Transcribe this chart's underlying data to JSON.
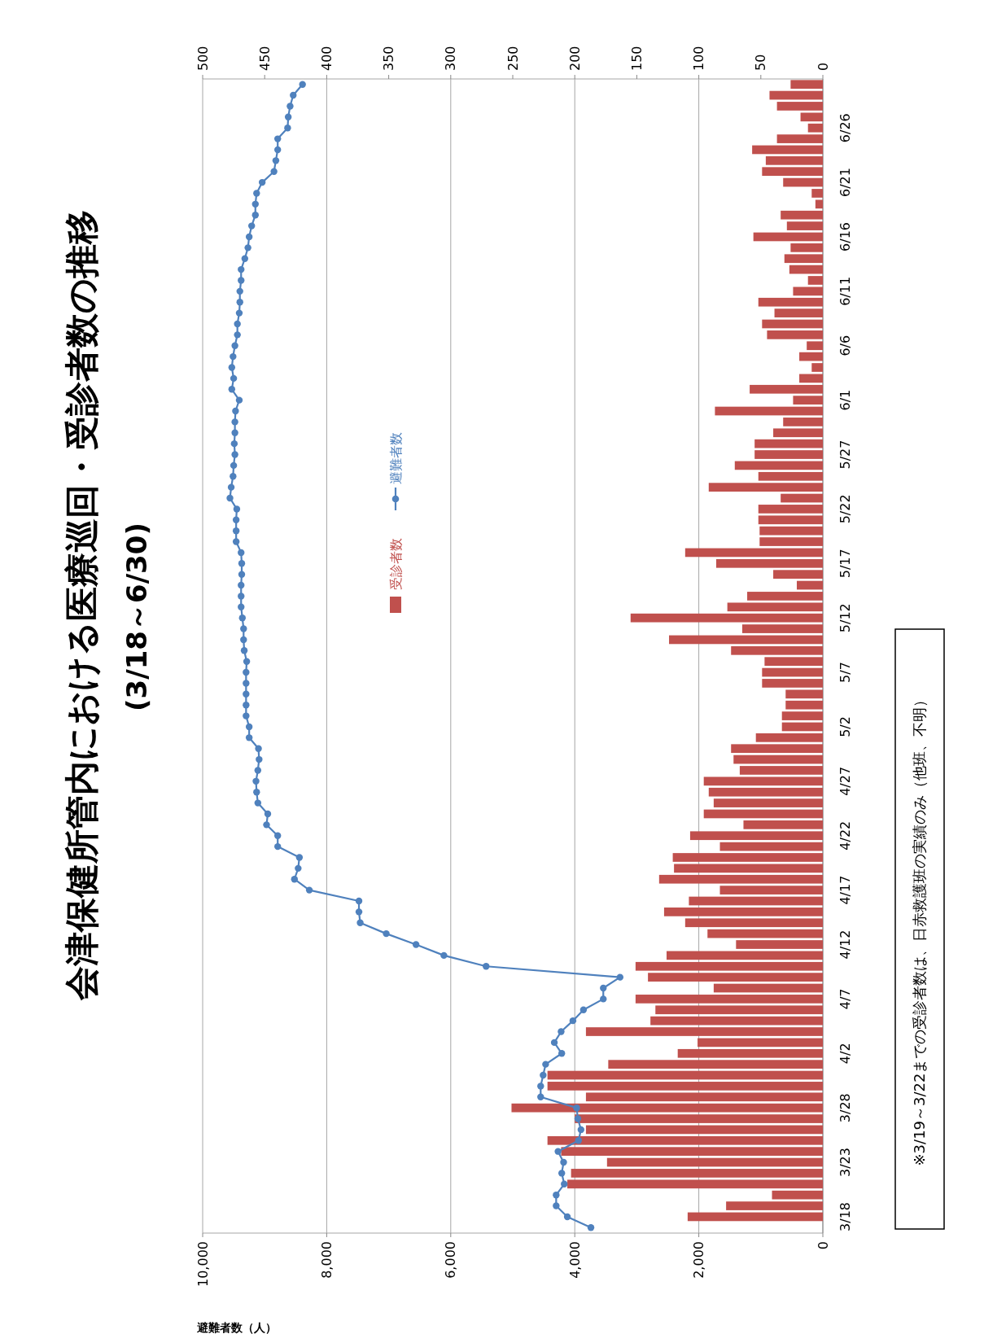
{
  "chart_data": {
    "type": "bar",
    "orientation": "horizontal",
    "title": "会津保健所管内における医療巡回・受診者数の推移",
    "subtitle": "(3/18～6/30)",
    "xlabel": "避難者数（人）",
    "categories": [
      null,
      null,
      null,
      null,
      "6/26",
      null,
      null,
      null,
      null,
      "6/21",
      null,
      null,
      null,
      null,
      "6/16",
      null,
      null,
      null,
      null,
      "6/11",
      null,
      null,
      null,
      null,
      "6/6",
      null,
      null,
      null,
      null,
      "6/1",
      null,
      null,
      null,
      null,
      "5/27",
      null,
      null,
      null,
      null,
      "5/22",
      null,
      null,
      null,
      null,
      "5/17",
      null,
      null,
      null,
      null,
      "5/12",
      null,
      null,
      null,
      null,
      "5/7",
      null,
      null,
      null,
      null,
      "5/2",
      null,
      null,
      null,
      null,
      "4/27",
      null,
      null,
      null,
      null,
      "4/22",
      null,
      null,
      null,
      null,
      "4/17",
      null,
      null,
      null,
      null,
      "4/12",
      null,
      null,
      null,
      null,
      "4/7",
      null,
      null,
      null,
      null,
      "4/2",
      null,
      null,
      null,
      null,
      "3/28",
      null,
      null,
      null,
      null,
      "3/23",
      null,
      null,
      null,
      null,
      "3/18",
      null
    ],
    "series": [
      {
        "name": "受診者数",
        "axis": "x2",
        "color": "#c0504d",
        "values": [
          26,
          43,
          37,
          18,
          12,
          37,
          57,
          46,
          49,
          32,
          9,
          6,
          34,
          29,
          56,
          26,
          31,
          27,
          12,
          24,
          52,
          39,
          49,
          45,
          13,
          19,
          9,
          19,
          59,
          24,
          87,
          32,
          40,
          55,
          55,
          71,
          52,
          92,
          34,
          52,
          52,
          51,
          51,
          111,
          86,
          40,
          21,
          61,
          77,
          155,
          65,
          124,
          74,
          47,
          49,
          49,
          30,
          30,
          33,
          33,
          54,
          74,
          72,
          67,
          96,
          92,
          88,
          96,
          64,
          107,
          83,
          121,
          120,
          132,
          83,
          108,
          128,
          111,
          93,
          70,
          126,
          151,
          141,
          88,
          151,
          135,
          139,
          191,
          101,
          117,
          173,
          222,
          222,
          191,
          251,
          200,
          191,
          222,
          211,
          174,
          203,
          206,
          41,
          78,
          109,
          null
        ]
      },
      {
        "name": "避難者数",
        "type": "line",
        "color": "#4f81bd",
        "values": [
          8390,
          8540,
          8590,
          8620,
          8630,
          8790,
          8790,
          8820,
          8850,
          9040,
          9130,
          9150,
          9150,
          9210,
          9250,
          9270,
          9320,
          9380,
          9380,
          9400,
          9400,
          9410,
          9440,
          9440,
          9480,
          9510,
          9530,
          9500,
          9530,
          9410,
          9470,
          9480,
          9480,
          9490,
          9480,
          9500,
          9510,
          9540,
          9560,
          9450,
          9460,
          9460,
          9460,
          9380,
          9370,
          9370,
          9380,
          9380,
          9380,
          9360,
          9340,
          9340,
          9330,
          9290,
          9300,
          9300,
          9300,
          9300,
          9300,
          9250,
          9250,
          9100,
          9090,
          9110,
          9140,
          9130,
          9110,
          8950,
          8970,
          8790,
          8790,
          8440,
          8460,
          8520,
          8280,
          7480,
          7480,
          7460,
          7040,
          6560,
          6110,
          5430,
          3270,
          3540,
          3540,
          3860,
          4030,
          4220,
          4330,
          4210,
          4470,
          4510,
          4550,
          4550,
          3970,
          3950,
          3900,
          3940,
          4270,
          4180,
          4210,
          4170,
          4300,
          4300,
          4120,
          3740
        ]
      }
    ],
    "xlim": [
      10000,
      0
    ],
    "xticks": [
      {
        "value": 10000,
        "label": "10,000"
      },
      {
        "value": 8000,
        "label": "8,000"
      },
      {
        "value": 6000,
        "label": "6,000"
      },
      {
        "value": 4000,
        "label": "4,000"
      },
      {
        "value": 2000,
        "label": "2,000"
      },
      0
    ],
    "x2lim": [
      500,
      0
    ],
    "x2ticks": [
      500,
      450,
      400,
      350,
      300,
      250,
      200,
      150,
      100,
      50,
      0
    ],
    "grid": "x",
    "legend": "left",
    "marker": "circle",
    "annotations": [
      "※3/19～3/22までの受診者数は、日赤救護班の実績のみ（他班、不明）"
    ]
  }
}
